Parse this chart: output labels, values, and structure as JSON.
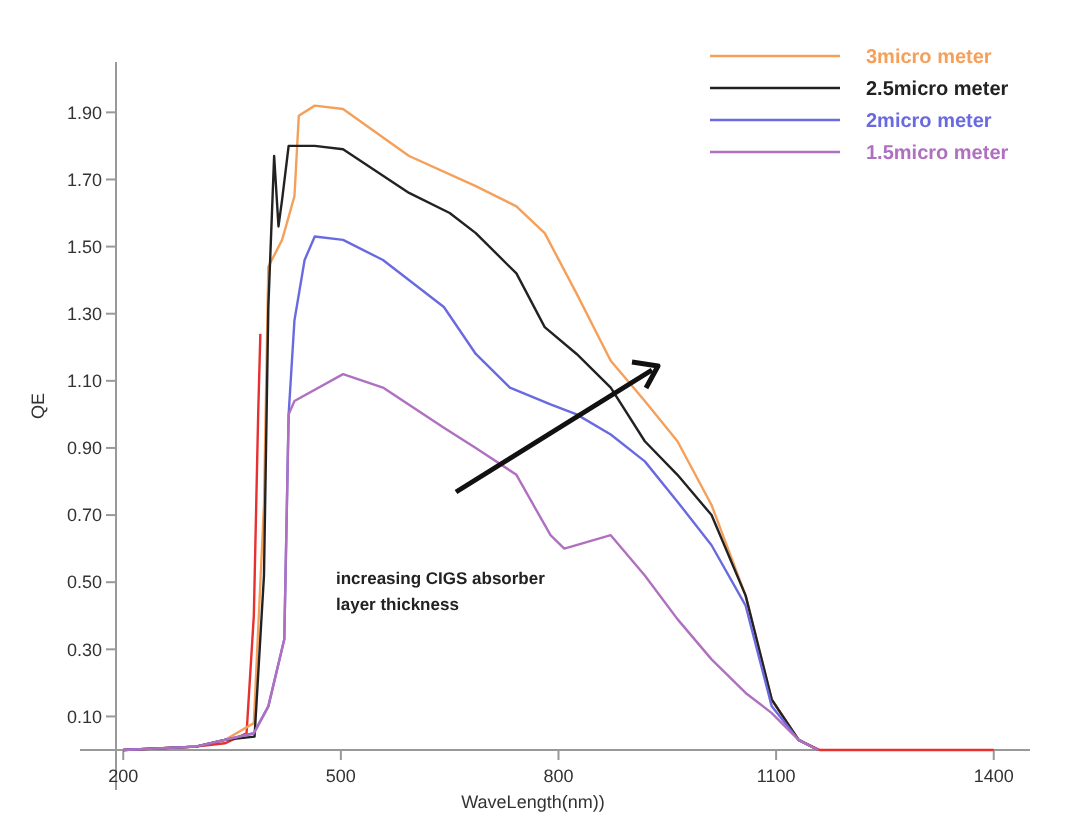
{
  "chart_data": {
    "type": "line",
    "xlabel": "WaveLength(nm))",
    "ylabel": "QE",
    "xlim": [
      190,
      1450
    ],
    "ylim": [
      0,
      2.05
    ],
    "xticks": [
      200,
      500,
      800,
      1100,
      1400
    ],
    "yticks": [
      {
        "value": 0.1,
        "label": "0.10"
      },
      {
        "value": 0.3,
        "label": "0.30"
      },
      {
        "value": 0.5,
        "label": "0.50"
      },
      {
        "value": 0.7,
        "label": "0.70"
      },
      {
        "value": 0.9,
        "label": "0.90"
      },
      {
        "value": 1.1,
        "label": "1.10"
      },
      {
        "value": 1.3,
        "label": "1.30"
      },
      {
        "value": 1.5,
        "label": "1.50"
      },
      {
        "value": 1.7,
        "label": "1.70"
      },
      {
        "value": 1.9,
        "label": "1.90"
      }
    ],
    "grid": false,
    "legend": "top right",
    "marker": "none",
    "line_style": "solid",
    "annotations": [
      "increasing CIGS absorber layer thickness"
    ],
    "series": [
      {
        "name": null,
        "color": "#e83030",
        "x": [
          200,
          300,
          340,
          370,
          380,
          386,
          389,
          390,
          1094,
          1131,
          1160,
          1400
        ],
        "values": [
          0,
          0.01,
          0.02,
          0.05,
          0.4,
          1.0,
          1.24,
          null,
          0.15,
          0.03,
          0,
          0
        ]
      },
      {
        "name": "3micro meter",
        "color": "#f5a05a",
        "x": [
          200,
          300,
          340,
          380,
          394,
          400,
          419,
          436,
          442,
          464,
          503,
          594,
          686,
          742,
          781,
          825,
          872,
          919,
          964,
          1011,
          1058,
          1094,
          1131,
          1158
        ],
        "values": [
          0,
          0.01,
          0.03,
          0.08,
          0.73,
          1.44,
          1.52,
          1.65,
          1.89,
          1.92,
          1.91,
          1.77,
          1.68,
          1.62,
          1.54,
          1.36,
          1.16,
          1.04,
          0.92,
          0.73,
          0.46,
          0.15,
          0.03,
          0
        ]
      },
      {
        "name": "2.5micro meter",
        "color": "#222222",
        "x": [
          200,
          300,
          340,
          381,
          394,
          400,
          408,
          414,
          419,
          428,
          464,
          503,
          594,
          650,
          686,
          742,
          781,
          825,
          872,
          919,
          964,
          1011,
          1058,
          1094,
          1131,
          1158
        ],
        "values": [
          0,
          0.01,
          0.03,
          0.04,
          0.52,
          1.32,
          1.77,
          1.56,
          1.64,
          1.8,
          1.8,
          1.79,
          1.66,
          1.6,
          1.54,
          1.42,
          1.26,
          1.18,
          1.08,
          0.92,
          0.82,
          0.7,
          0.46,
          0.15,
          0.03,
          0
        ]
      },
      {
        "name": "2micro meter",
        "color": "#6a6ae0",
        "x": [
          200,
          300,
          340,
          380,
          400,
          422,
          428,
          436,
          450,
          464,
          503,
          558,
          642,
          686,
          733,
          789,
          825,
          872,
          919,
          964,
          1011,
          1058,
          1094,
          1131,
          1158
        ],
        "values": [
          0,
          0.01,
          0.03,
          0.05,
          0.13,
          0.33,
          1.0,
          1.28,
          1.46,
          1.53,
          1.52,
          1.46,
          1.32,
          1.18,
          1.08,
          1.03,
          1.0,
          0.94,
          0.86,
          0.74,
          0.61,
          0.43,
          0.13,
          0.03,
          0
        ]
      },
      {
        "name": "1.5micro meter",
        "color": "#b070c0",
        "x": [
          200,
          300,
          340,
          380,
          400,
          422,
          428,
          436,
          503,
          558,
          642,
          686,
          742,
          789,
          808,
          872,
          919,
          964,
          1011,
          1058,
          1094,
          1131,
          1158
        ],
        "values": [
          0,
          0.01,
          0.03,
          0.05,
          0.13,
          0.33,
          1.0,
          1.04,
          1.12,
          1.08,
          0.96,
          0.9,
          0.82,
          0.64,
          0.6,
          0.64,
          0.52,
          0.39,
          0.27,
          0.17,
          0.11,
          0.03,
          0
        ]
      }
    ]
  }
}
